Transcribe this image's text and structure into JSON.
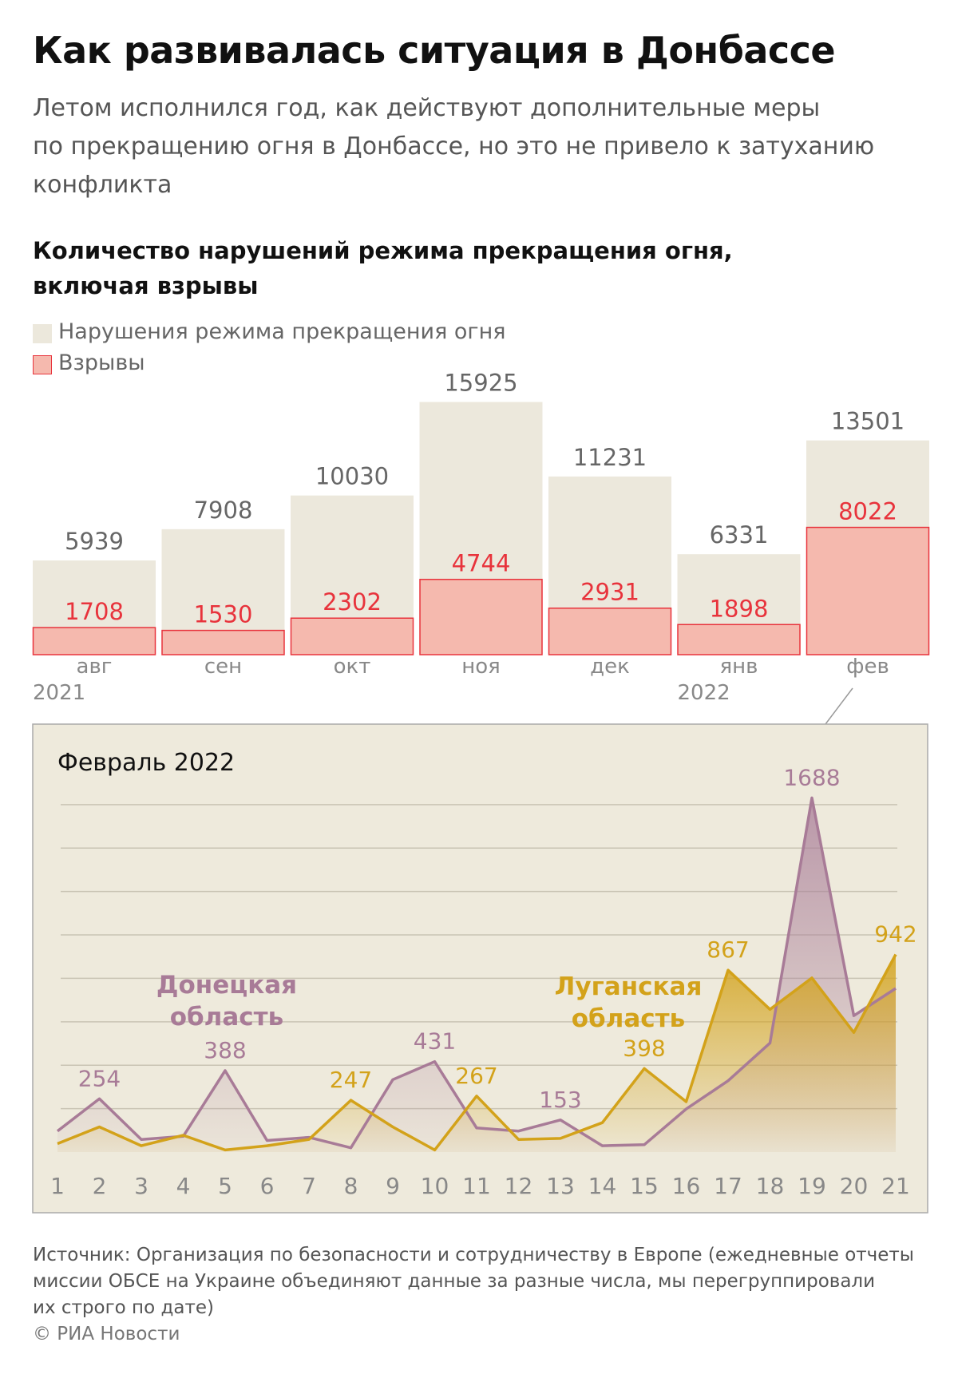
{
  "header": {
    "title": "Как развивалась ситуация в Донбассе",
    "lead_lines": [
      "Летом исполнился год, как действуют дополнительные меры",
      "по прекращению огня в Донбассе, но это не привело к затуханию",
      "конфликта"
    ]
  },
  "subtitle_lines": [
    "Количество нарушений режима прекращения огня,",
    "включая взрывы"
  ],
  "colors": {
    "violations_fill": "#ece8dc",
    "explosions_fill": "#f5b9ae",
    "explosions_stroke": "#e8333c",
    "violations_label": "#666666",
    "explosions_label": "#e8333c",
    "donetsk": "#a87b97",
    "lugansk": "#d3a21a",
    "inset_background": "#eeeadc"
  },
  "chart_data": [
    {
      "type": "bar",
      "title": "Количество нарушений режима прекращения огня, включая взрывы",
      "legend": [
        "Нарушения режима прекращения огня",
        "Взрывы"
      ],
      "categories": [
        "авг",
        "сен",
        "окт",
        "ноя",
        "дек",
        "янв",
        "фев"
      ],
      "year_labels": [
        {
          "index": 0,
          "label": "2021"
        },
        {
          "index": 5,
          "label": "2022"
        }
      ],
      "series": [
        {
          "name": "Нарушения режима прекращения огня",
          "values": [
            5939,
            7908,
            10030,
            15925,
            11231,
            6331,
            13501
          ]
        },
        {
          "name": "Взрывы",
          "values": [
            1708,
            1530,
            2302,
            4744,
            2931,
            1898,
            8022
          ]
        }
      ],
      "ylim": [
        0,
        16000
      ]
    },
    {
      "type": "area",
      "title": "Февраль 2022",
      "x": [
        1,
        2,
        3,
        4,
        5,
        6,
        7,
        8,
        9,
        10,
        11,
        12,
        13,
        14,
        15,
        16,
        17,
        18,
        19,
        20,
        21
      ],
      "series": [
        {
          "name": "Донецкая область",
          "values": [
            100,
            254,
            60,
            75,
            388,
            55,
            70,
            20,
            345,
            431,
            115,
            100,
            153,
            30,
            35,
            205,
            340,
            520,
            1688,
            650,
            780
          ]
        },
        {
          "name": "Луганская область",
          "values": [
            40,
            120,
            30,
            80,
            10,
            30,
            60,
            247,
            120,
            10,
            267,
            60,
            65,
            140,
            398,
            240,
            867,
            680,
            830,
            570,
            942
          ]
        }
      ],
      "point_labels": [
        {
          "series": 0,
          "x": 2,
          "text": "254"
        },
        {
          "series": 0,
          "x": 5,
          "text": "388"
        },
        {
          "series": 0,
          "x": 10,
          "text": "431"
        },
        {
          "series": 0,
          "x": 13,
          "text": "153"
        },
        {
          "series": 0,
          "x": 19,
          "text": "1688"
        },
        {
          "series": 1,
          "x": 8,
          "text": "247"
        },
        {
          "series": 1,
          "x": 11,
          "text": "267"
        },
        {
          "series": 1,
          "x": 15,
          "text": "398"
        },
        {
          "series": 1,
          "x": 17,
          "text": "867"
        },
        {
          "series": 1,
          "x": 21,
          "text": "942"
        }
      ],
      "area_labels": [
        {
          "series": 0,
          "lines": [
            "Донецкая",
            "область"
          ]
        },
        {
          "series": 1,
          "lines": [
            "Луганская",
            "область"
          ]
        }
      ],
      "ylim": [
        0,
        1800
      ],
      "grid": true,
      "gridlines": 8
    }
  ],
  "footer": {
    "source_lines": [
      "Источник: Организация по безопасности и сотрудничеству в Европе (ежедневные отчеты",
      "миссии ОБСЕ на Украине объединяют данные за разные числа, мы перегруппировали",
      "их строго по дате)"
    ],
    "credit": "© РИА Новости"
  }
}
